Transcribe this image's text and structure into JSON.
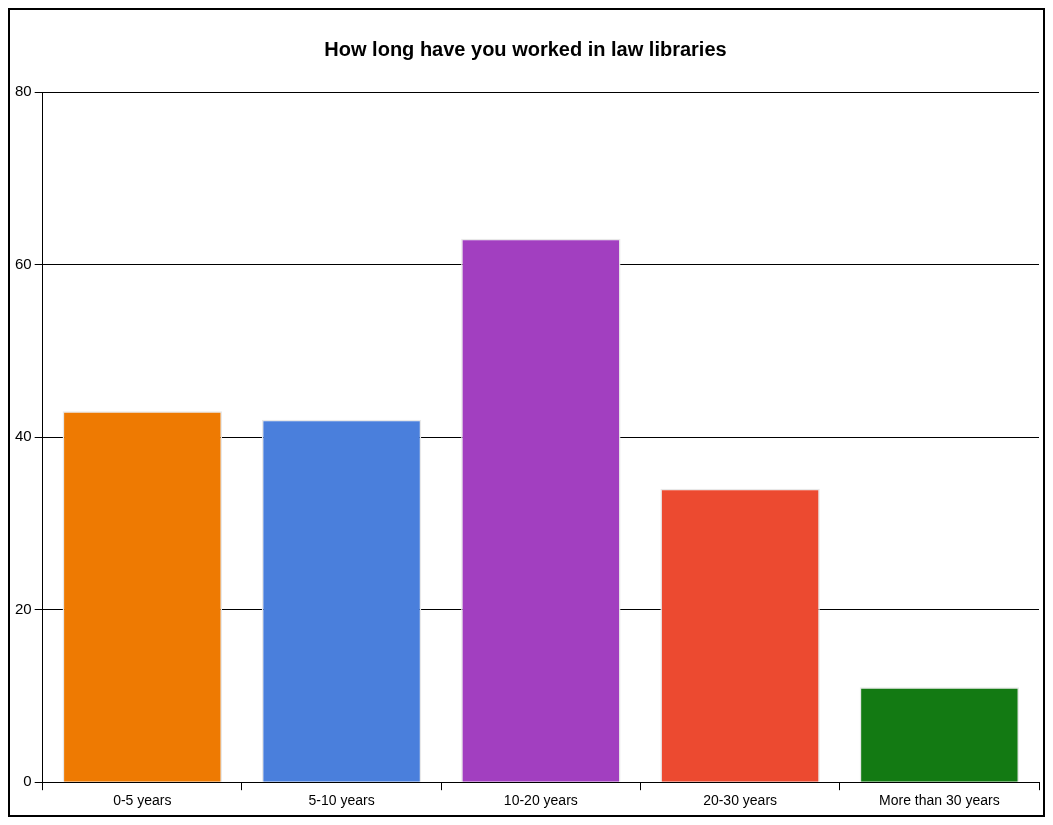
{
  "chart_data": {
    "type": "bar",
    "title": "How long have you worked in law libraries",
    "categories": [
      "0-5 years",
      "5-10 years",
      "10-20 years",
      "20-30 years",
      "More than 30 years"
    ],
    "values": [
      43,
      42,
      63,
      34,
      11
    ],
    "colors": [
      "#ee7a02",
      "#4a7fdc",
      "#a23fc0",
      "#ec4a30",
      "#137a13"
    ],
    "ylim": [
      0,
      80
    ],
    "yticks": [
      0,
      20,
      40,
      60,
      80
    ],
    "grid": "y",
    "legend": false
  }
}
